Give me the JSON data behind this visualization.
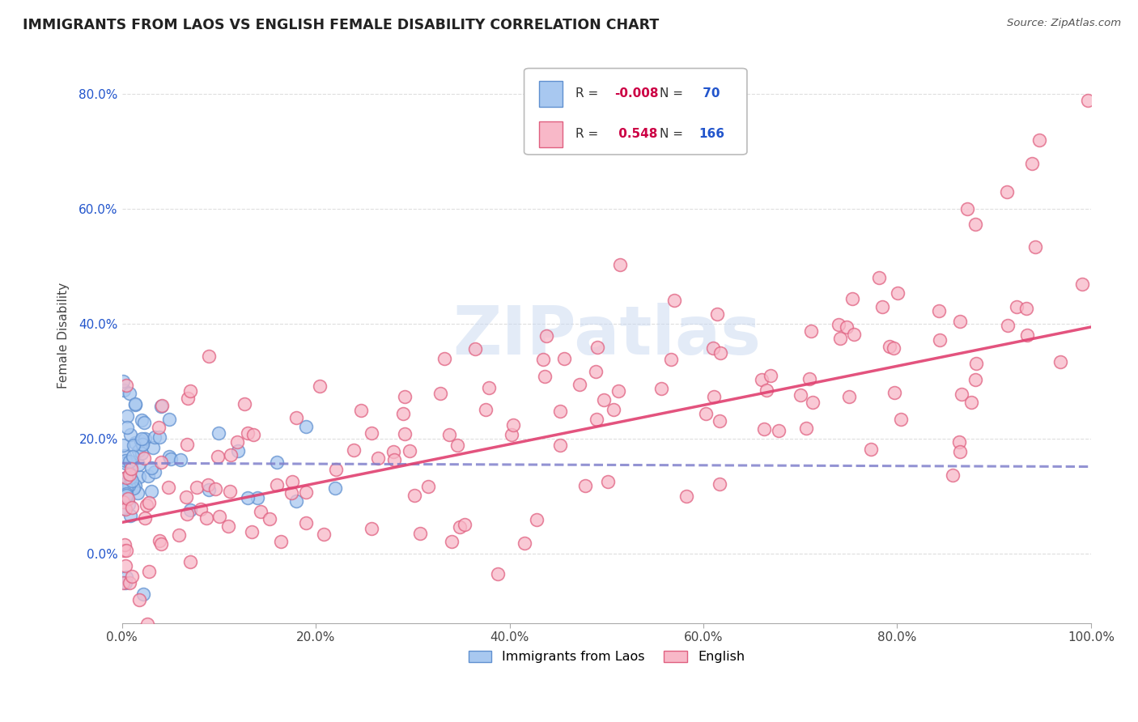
{
  "title": "IMMIGRANTS FROM LAOS VS ENGLISH FEMALE DISABILITY CORRELATION CHART",
  "source": "Source: ZipAtlas.com",
  "ylabel": "Female Disability",
  "legend_label1": "Immigrants from Laos",
  "legend_label2": "English",
  "R1": -0.008,
  "N1": 70,
  "R2": 0.548,
  "N2": 166,
  "color1_face": "#a8c8f0",
  "color1_edge": "#6090d0",
  "color2_face": "#f8b8c8",
  "color2_edge": "#e06080",
  "trend1_color": "#8080cc",
  "trend2_color": "#e04070",
  "background": "#ffffff",
  "grid_color": "#c8c8c8",
  "title_color": "#222222",
  "source_color": "#555555",
  "R_color": "#cc0044",
  "N_color": "#2255cc",
  "ytick_color": "#2255cc",
  "xtick_color": "#444444",
  "ylabel_color": "#444444",
  "watermark_color": "#c8d8f0",
  "xlim": [
    0.0,
    1.0
  ],
  "ylim_min": -0.12,
  "ylim_max": 0.88,
  "trend1_start_y": 0.158,
  "trend1_end_y": 0.152,
  "trend2_start_y": 0.055,
  "trend2_end_y": 0.395
}
